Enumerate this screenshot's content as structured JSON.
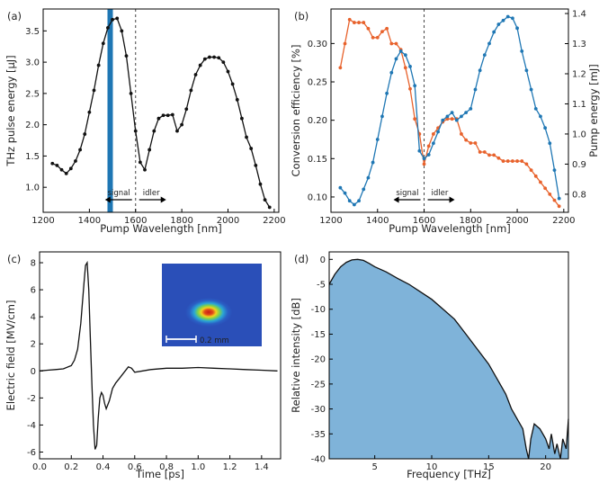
{
  "chart_data": [
    {
      "panel": "(a)",
      "type": "line",
      "xlabel": "Pump Wavelength [nm]",
      "ylabel": "THz pulse energy [µJ]",
      "xlim": [
        1200,
        2220
      ],
      "ylim": [
        0.6,
        3.85
      ],
      "xticks": [
        1200,
        1400,
        1600,
        1800,
        2000,
        2200
      ],
      "yticks": [
        1.0,
        1.5,
        2.0,
        2.5,
        3.0,
        3.5
      ],
      "tick_decimals": {
        "x": 0,
        "y": 1
      },
      "color": "#111111",
      "x": [
        1240,
        1260,
        1280,
        1300,
        1320,
        1340,
        1360,
        1380,
        1400,
        1420,
        1440,
        1460,
        1480,
        1500,
        1520,
        1540,
        1560,
        1580,
        1600,
        1620,
        1640,
        1660,
        1680,
        1700,
        1720,
        1740,
        1760,
        1780,
        1800,
        1820,
        1840,
        1860,
        1880,
        1900,
        1920,
        1940,
        1960,
        1980,
        2000,
        2020,
        2040,
        2060,
        2080,
        2100,
        2120,
        2140,
        2160,
        2180
      ],
      "y": [
        1.38,
        1.35,
        1.28,
        1.22,
        1.3,
        1.42,
        1.6,
        1.85,
        2.2,
        2.55,
        2.95,
        3.3,
        3.55,
        3.68,
        3.7,
        3.5,
        3.1,
        2.5,
        1.9,
        1.4,
        1.28,
        1.6,
        1.9,
        2.1,
        2.15,
        2.15,
        2.16,
        1.9,
        2.0,
        2.25,
        2.55,
        2.8,
        2.95,
        3.05,
        3.08,
        3.08,
        3.07,
        3.0,
        2.85,
        2.65,
        2.4,
        2.1,
        1.8,
        1.62,
        1.35,
        1.05,
        0.8,
        0.68
      ],
      "highlight_band": {
        "x": 1490,
        "color": "#1f77b4"
      },
      "vline_x": 1600,
      "annotations": {
        "signal": "signal",
        "idler": "idler"
      }
    },
    {
      "panel": "(b)",
      "type": "line",
      "xlabel": "Pump Wavelength [nm]",
      "ylabel_left": "Conversion efficiency [%]",
      "ylabel_right": "Pump energy [mJ]",
      "xlim": [
        1200,
        2220
      ],
      "ylim_left": [
        0.08,
        0.345
      ],
      "ylim_right": [
        0.74,
        1.415
      ],
      "xticks": [
        1200,
        1400,
        1600,
        1800,
        2000,
        2200
      ],
      "yticks_left": [
        0.1,
        0.15,
        0.2,
        0.25,
        0.3
      ],
      "yticks_right": [
        0.8,
        0.9,
        1.0,
        1.1,
        1.2,
        1.3,
        1.4
      ],
      "tick_decimals": {
        "x": 0,
        "y_left": 2,
        "y_right": 1
      },
      "color_left": "#1f77b4",
      "color_right": "#e8622c",
      "vline_x": 1600,
      "annotations": {
        "signal": "signal",
        "idler": "idler"
      },
      "series": [
        {
          "axis": "left",
          "x": [
            1240,
            1260,
            1280,
            1300,
            1320,
            1340,
            1360,
            1380,
            1400,
            1420,
            1440,
            1460,
            1480,
            1500,
            1520,
            1540,
            1560,
            1580,
            1600,
            1620,
            1640,
            1660,
            1680,
            1700,
            1720,
            1740,
            1760,
            1780,
            1800,
            1820,
            1840,
            1860,
            1880,
            1900,
            1920,
            1940,
            1960,
            1980,
            2000,
            2020,
            2040,
            2060,
            2080,
            2100,
            2120,
            2140,
            2160,
            2180
          ],
          "y": [
            0.112,
            0.105,
            0.095,
            0.09,
            0.095,
            0.11,
            0.125,
            0.145,
            0.175,
            0.205,
            0.235,
            0.262,
            0.28,
            0.29,
            0.285,
            0.27,
            0.245,
            0.16,
            0.15,
            0.155,
            0.17,
            0.185,
            0.2,
            0.205,
            0.21,
            0.2,
            0.205,
            0.21,
            0.215,
            0.24,
            0.265,
            0.285,
            0.3,
            0.315,
            0.325,
            0.33,
            0.335,
            0.333,
            0.32,
            0.29,
            0.265,
            0.24,
            0.215,
            0.205,
            0.19,
            0.17,
            0.135,
            0.098
          ]
        },
        {
          "axis": "right",
          "x": [
            1240,
            1260,
            1280,
            1300,
            1320,
            1340,
            1360,
            1380,
            1400,
            1420,
            1440,
            1460,
            1480,
            1500,
            1520,
            1540,
            1560,
            1580,
            1600,
            1620,
            1640,
            1660,
            1680,
            1700,
            1720,
            1740,
            1760,
            1780,
            1800,
            1820,
            1840,
            1860,
            1880,
            1900,
            1920,
            1940,
            1960,
            1980,
            2000,
            2020,
            2040,
            2060,
            2080,
            2100,
            2120,
            2140,
            2160,
            2180
          ],
          "y": [
            1.22,
            1.3,
            1.38,
            1.37,
            1.37,
            1.37,
            1.35,
            1.32,
            1.32,
            1.34,
            1.35,
            1.3,
            1.3,
            1.28,
            1.22,
            1.15,
            1.05,
            1.0,
            0.9,
            0.96,
            1.0,
            1.02,
            1.04,
            1.05,
            1.05,
            1.05,
            1.0,
            0.98,
            0.97,
            0.97,
            0.94,
            0.94,
            0.93,
            0.93,
            0.92,
            0.91,
            0.91,
            0.91,
            0.91,
            0.91,
            0.9,
            0.88,
            0.86,
            0.84,
            0.82,
            0.8,
            0.78,
            0.76
          ]
        }
      ]
    },
    {
      "panel": "(c)",
      "type": "line",
      "xlabel": "Time [ps]",
      "ylabel": "Electric field [MV/cm]",
      "xlim": [
        0.0,
        1.52
      ],
      "ylim": [
        -6.5,
        8.8
      ],
      "xticks": [
        0.0,
        0.2,
        0.4,
        0.6,
        0.8,
        1.0,
        1.2,
        1.4
      ],
      "yticks": [
        -6,
        -4,
        -2,
        0,
        2,
        4,
        6,
        8
      ],
      "tick_decimals": {
        "x": 1,
        "y": 0
      },
      "color": "#111111",
      "x": [
        0.0,
        0.05,
        0.1,
        0.15,
        0.2,
        0.22,
        0.24,
        0.26,
        0.28,
        0.29,
        0.3,
        0.31,
        0.32,
        0.33,
        0.34,
        0.35,
        0.36,
        0.37,
        0.38,
        0.39,
        0.4,
        0.41,
        0.42,
        0.44,
        0.46,
        0.48,
        0.5,
        0.52,
        0.54,
        0.56,
        0.58,
        0.6,
        0.65,
        0.7,
        0.8,
        0.9,
        1.0,
        1.1,
        1.2,
        1.3,
        1.4,
        1.5
      ],
      "y": [
        0.0,
        0.05,
        0.1,
        0.15,
        0.4,
        0.8,
        1.6,
        3.5,
        6.5,
        7.8,
        8.0,
        6.0,
        2.5,
        -1.0,
        -4.0,
        -5.8,
        -5.5,
        -3.5,
        -2.0,
        -1.6,
        -1.8,
        -2.4,
        -2.8,
        -2.2,
        -1.3,
        -0.9,
        -0.6,
        -0.3,
        0.0,
        0.3,
        0.2,
        -0.1,
        0.0,
        0.1,
        0.2,
        0.2,
        0.25,
        0.2,
        0.15,
        0.1,
        0.05,
        0.0
      ],
      "inset": {
        "scale_label": "0.2 mm"
      }
    },
    {
      "panel": "(d)",
      "type": "area",
      "xlabel": "Frequency [THz]",
      "ylabel": "Relative intensity [dB]",
      "xlim": [
        1,
        22
      ],
      "ylim": [
        -40,
        1.5
      ],
      "xticks": [
        5,
        10,
        15,
        20
      ],
      "yticks": [
        -40,
        -35,
        -30,
        -25,
        -20,
        -15,
        -10,
        -5,
        0
      ],
      "tick_decimals": {
        "x": 0,
        "y": 0
      },
      "fill_color": "#7fb3d9",
      "line_color": "#111111",
      "x": [
        1.0,
        1.5,
        2.0,
        2.5,
        3.0,
        3.5,
        4.0,
        4.5,
        5.0,
        6.0,
        7.0,
        8.0,
        9.0,
        10.0,
        11.0,
        12.0,
        13.0,
        14.0,
        15.0,
        16.0,
        16.5,
        17.0,
        17.5,
        18.0,
        18.3,
        18.5,
        18.7,
        19.0,
        19.5,
        20.0,
        20.3,
        20.5,
        20.8,
        21.0,
        21.3,
        21.5,
        21.8,
        22.0
      ],
      "y": [
        -5.0,
        -3.0,
        -1.5,
        -0.6,
        -0.1,
        0.0,
        -0.2,
        -0.8,
        -1.5,
        -2.5,
        -3.8,
        -5.0,
        -6.5,
        -8.0,
        -10.0,
        -12.0,
        -15.0,
        -18.0,
        -21.0,
        -25.0,
        -27.0,
        -30.0,
        -32.0,
        -34.0,
        -38.0,
        -40.0,
        -36.0,
        -33.0,
        -34.0,
        -36.0,
        -38.0,
        -35.0,
        -39.0,
        -37.0,
        -40.0,
        -36.0,
        -38.0,
        -32.0
      ]
    }
  ]
}
